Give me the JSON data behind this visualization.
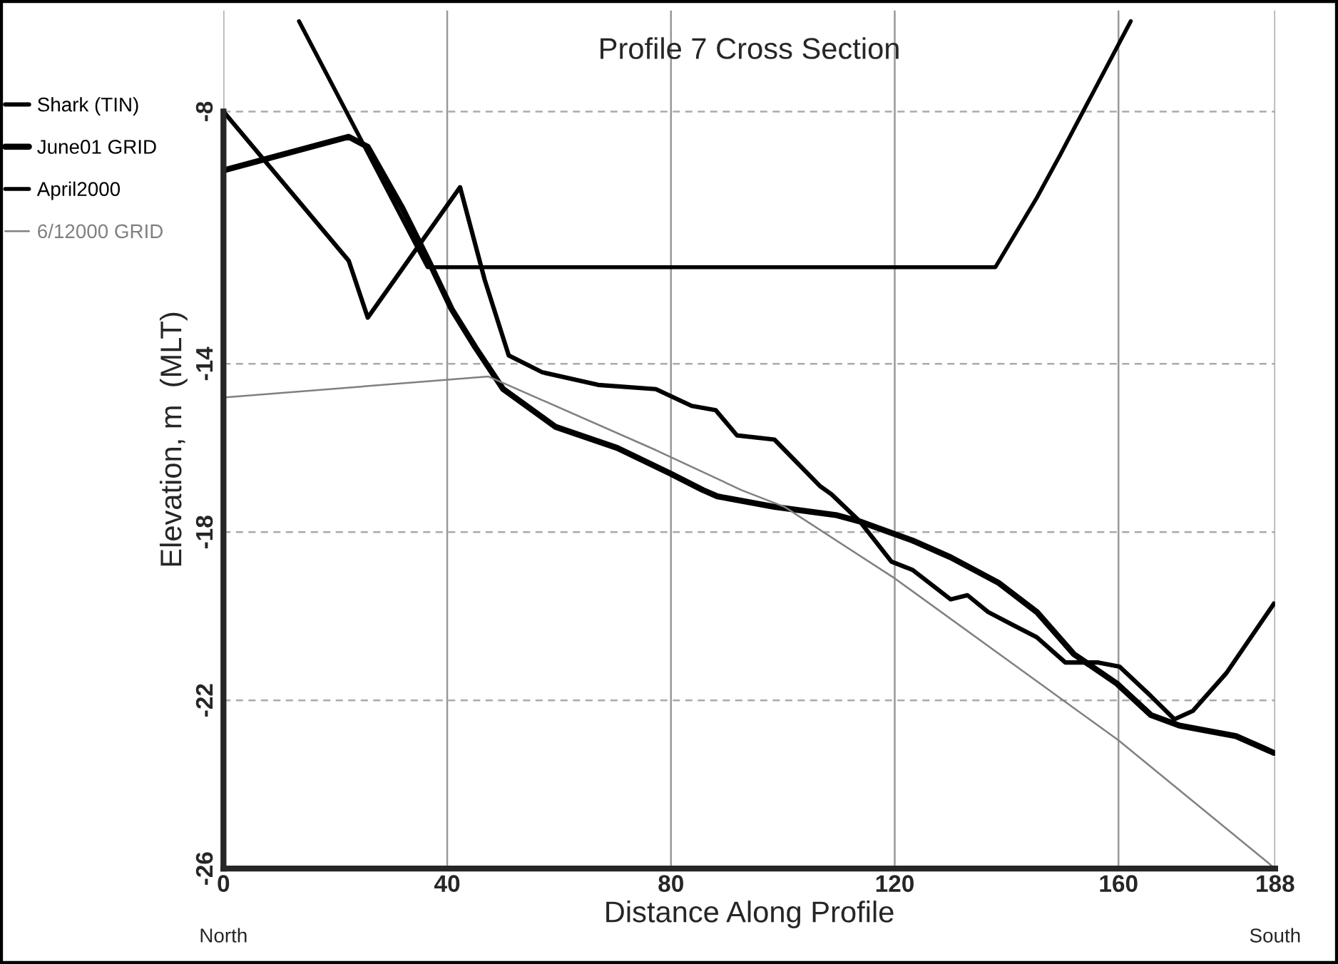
{
  "chart_data": {
    "type": "line",
    "title": "Profile 7 Cross Section",
    "xlabel": "Distance Along Profile",
    "ylabel": "Elevation, m  (MLT)",
    "xlim": [
      0,
      188
    ],
    "ylim": [
      -26,
      -5.6
    ],
    "xticks": [
      0,
      40,
      80,
      120,
      160,
      188
    ],
    "yticks": [
      -26,
      -22,
      -18,
      -14,
      -8
    ],
    "grid": true,
    "legend": "left",
    "marker": "none",
    "line_style": "solid",
    "annotations": [
      "North",
      "South"
    ],
    "series": [
      {
        "name": "Shark (TIN)",
        "color": "#000000",
        "x": [
          0,
          22.4,
          25.8,
          42.3,
          46.7,
          51,
          57,
          67,
          77.3,
          83.7,
          88,
          91.8,
          98.5,
          106.6,
          108.7,
          113.8,
          119.4,
          123.2,
          130,
          133,
          136.7,
          141,
          145.4,
          150.5,
          156.4,
          160.2,
          165.8,
          170,
          173.3,
          179.3,
          187.8
        ],
        "values": [
          -8,
          -11.55,
          -12.9,
          -9.8,
          -12,
          -13.8,
          -14.2,
          -14.5,
          -14.6,
          -15.0,
          -15.1,
          -15.7,
          -15.8,
          -16.9,
          -17.1,
          -17.75,
          -18.7,
          -18.9,
          -19.6,
          -19.5,
          -19.9,
          -20.2,
          -20.5,
          -21.1,
          -21.1,
          -21.2,
          -21.9,
          -22.45,
          -22.25,
          -21.35,
          -19.7
        ]
      },
      {
        "name": "June01 GRID",
        "color": "#000000",
        "x": [
          0,
          22.4,
          25.8,
          32,
          36.5,
          40.8,
          45,
          50,
          59.4,
          70.4,
          79.8,
          85.7,
          88.3,
          98.5,
          109.7,
          113.8,
          123.2,
          130,
          138.5,
          145.4,
          152,
          159.7,
          165.8,
          170.9,
          181,
          187.8
        ],
        "values": [
          -9.4,
          -8.6,
          -8.84,
          -10.3,
          -11.5,
          -12.7,
          -13.6,
          -14.6,
          -15.5,
          -16.0,
          -16.6,
          -17.0,
          -17.15,
          -17.4,
          -17.6,
          -17.75,
          -18.2,
          -18.6,
          -19.2,
          -19.9,
          -20.9,
          -21.6,
          -22.35,
          -22.6,
          -22.85,
          -23.25
        ]
      },
      {
        "name": "April2000",
        "color": "#000000",
        "x": [
          13.5,
          36.5,
          138,
          145.4,
          149.5,
          162.2
        ],
        "values": [
          -5.85,
          -11.7,
          -11.7,
          -10.05,
          -9.05,
          -5.85
        ]
      },
      {
        "name": "6/12000 GRID",
        "color": "#808080",
        "x": [
          0,
          47.4,
          77.3,
          92.6,
          100.3,
          120,
          160,
          188
        ],
        "values": [
          -14.8,
          -14.3,
          -16.05,
          -17.0,
          -17.4,
          -19.1,
          -22.95,
          -26
        ]
      }
    ]
  }
}
